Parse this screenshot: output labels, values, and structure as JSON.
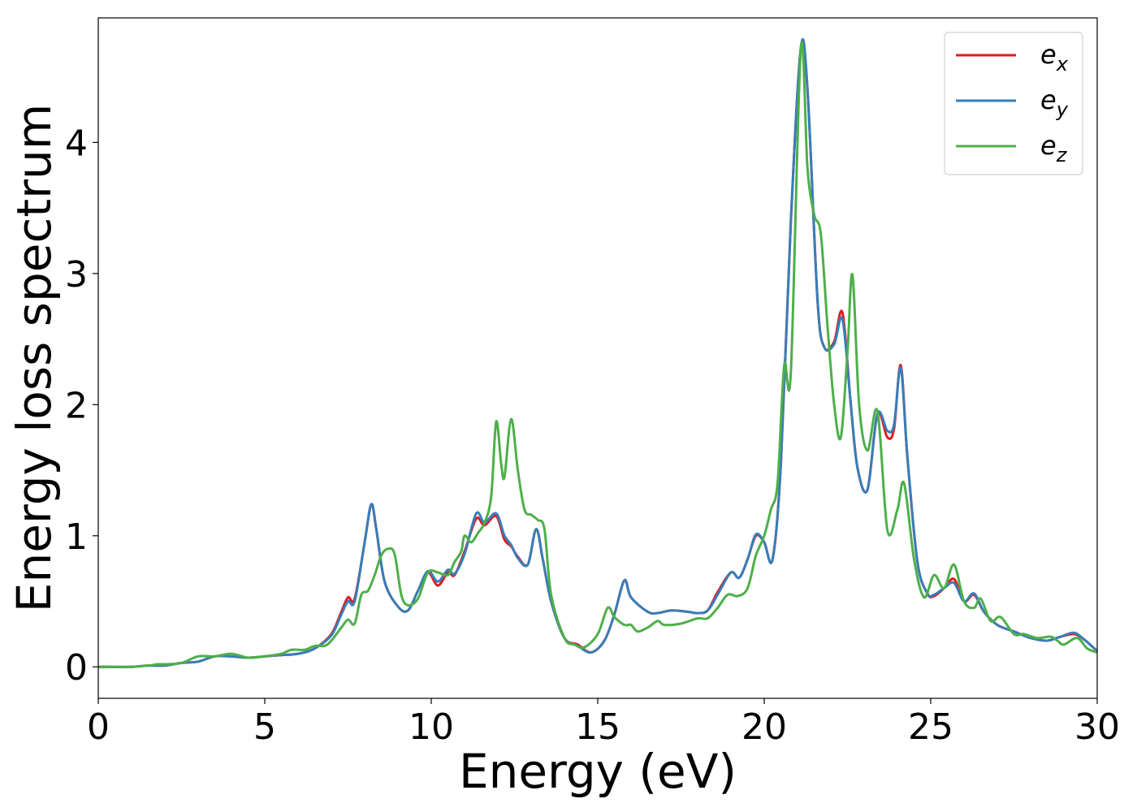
{
  "chart_data": {
    "type": "line",
    "xlabel": "Energy (eV)",
    "ylabel": "Energy loss spectrum",
    "xlim": [
      0,
      30
    ],
    "ylim": [
      -0.24,
      4.95
    ],
    "xticks": [
      0,
      5,
      10,
      15,
      20,
      25,
      30
    ],
    "xtick_labels": [
      "0",
      "5",
      "10",
      "15",
      "20",
      "25",
      "30"
    ],
    "yticks": [
      0,
      1,
      2,
      3,
      4
    ],
    "ytick_labels": [
      "0",
      "1",
      "2",
      "3",
      "4"
    ],
    "grid": false,
    "legend_position": "top-right",
    "series": [
      {
        "name": "e_x",
        "label_base": "e",
        "label_sub": "x",
        "color": "#e41a1c",
        "points": [
          [
            0,
            0.0
          ],
          [
            1.0,
            0.0
          ],
          [
            1.5,
            0.01
          ],
          [
            2.0,
            0.01
          ],
          [
            2.5,
            0.03
          ],
          [
            3.0,
            0.04
          ],
          [
            3.5,
            0.08
          ],
          [
            4.0,
            0.08
          ],
          [
            4.5,
            0.07
          ],
          [
            5.0,
            0.08
          ],
          [
            5.5,
            0.09
          ],
          [
            6.0,
            0.1
          ],
          [
            6.5,
            0.14
          ],
          [
            7.0,
            0.25
          ],
          [
            7.3,
            0.42
          ],
          [
            7.5,
            0.53
          ],
          [
            7.7,
            0.52
          ],
          [
            8.0,
            0.95
          ],
          [
            8.2,
            1.24
          ],
          [
            8.35,
            1.05
          ],
          [
            8.6,
            0.65
          ],
          [
            9.0,
            0.46
          ],
          [
            9.3,
            0.43
          ],
          [
            9.6,
            0.58
          ],
          [
            9.9,
            0.72
          ],
          [
            10.2,
            0.62
          ],
          [
            10.5,
            0.72
          ],
          [
            10.7,
            0.7
          ],
          [
            11.0,
            0.88
          ],
          [
            11.35,
            1.13
          ],
          [
            11.6,
            1.08
          ],
          [
            11.95,
            1.15
          ],
          [
            12.2,
            0.97
          ],
          [
            12.4,
            0.92
          ],
          [
            12.6,
            0.84
          ],
          [
            12.9,
            0.78
          ],
          [
            13.15,
            1.05
          ],
          [
            13.35,
            0.82
          ],
          [
            13.6,
            0.5
          ],
          [
            14.0,
            0.22
          ],
          [
            14.4,
            0.17
          ],
          [
            14.8,
            0.11
          ],
          [
            15.2,
            0.2
          ],
          [
            15.5,
            0.4
          ],
          [
            15.8,
            0.66
          ],
          [
            16.0,
            0.53
          ],
          [
            16.5,
            0.42
          ],
          [
            16.8,
            0.41
          ],
          [
            17.2,
            0.43
          ],
          [
            17.7,
            0.42
          ],
          [
            18.0,
            0.41
          ],
          [
            18.3,
            0.43
          ],
          [
            18.6,
            0.57
          ],
          [
            19.0,
            0.72
          ],
          [
            19.25,
            0.68
          ],
          [
            19.5,
            0.82
          ],
          [
            19.75,
            1.0
          ],
          [
            20.0,
            0.95
          ],
          [
            20.25,
            0.82
          ],
          [
            20.5,
            1.55
          ],
          [
            20.8,
            3.4
          ],
          [
            21.1,
            4.72
          ],
          [
            21.3,
            4.4
          ],
          [
            21.6,
            2.8
          ],
          [
            21.8,
            2.44
          ],
          [
            22.1,
            2.48
          ],
          [
            22.35,
            2.7
          ],
          [
            22.6,
            2.0
          ],
          [
            22.8,
            1.52
          ],
          [
            23.1,
            1.35
          ],
          [
            23.4,
            1.93
          ],
          [
            23.7,
            1.75
          ],
          [
            23.9,
            1.82
          ],
          [
            24.1,
            2.3
          ],
          [
            24.3,
            1.6
          ],
          [
            24.6,
            0.8
          ],
          [
            24.9,
            0.56
          ],
          [
            25.1,
            0.54
          ],
          [
            25.4,
            0.6
          ],
          [
            25.7,
            0.67
          ],
          [
            26.0,
            0.5
          ],
          [
            26.3,
            0.55
          ],
          [
            26.6,
            0.42
          ],
          [
            27.0,
            0.32
          ],
          [
            27.5,
            0.27
          ],
          [
            28.0,
            0.22
          ],
          [
            28.5,
            0.2
          ],
          [
            28.9,
            0.23
          ],
          [
            29.3,
            0.25
          ],
          [
            29.6,
            0.21
          ],
          [
            30.0,
            0.12
          ]
        ]
      },
      {
        "name": "e_y",
        "label_base": "e",
        "label_sub": "y",
        "color": "#377eb8",
        "points": [
          [
            0,
            0.0
          ],
          [
            1.0,
            0.0
          ],
          [
            1.5,
            0.01
          ],
          [
            2.0,
            0.01
          ],
          [
            2.5,
            0.03
          ],
          [
            3.0,
            0.04
          ],
          [
            3.5,
            0.08
          ],
          [
            4.0,
            0.08
          ],
          [
            4.5,
            0.07
          ],
          [
            5.0,
            0.08
          ],
          [
            5.5,
            0.09
          ],
          [
            6.0,
            0.1
          ],
          [
            6.5,
            0.14
          ],
          [
            7.0,
            0.24
          ],
          [
            7.3,
            0.4
          ],
          [
            7.5,
            0.5
          ],
          [
            7.7,
            0.5
          ],
          [
            8.0,
            0.95
          ],
          [
            8.2,
            1.24
          ],
          [
            8.35,
            1.05
          ],
          [
            8.6,
            0.65
          ],
          [
            9.0,
            0.46
          ],
          [
            9.3,
            0.43
          ],
          [
            9.6,
            0.58
          ],
          [
            9.9,
            0.73
          ],
          [
            10.2,
            0.65
          ],
          [
            10.5,
            0.74
          ],
          [
            10.7,
            0.71
          ],
          [
            11.0,
            0.86
          ],
          [
            11.35,
            1.17
          ],
          [
            11.6,
            1.1
          ],
          [
            11.95,
            1.17
          ],
          [
            12.2,
            1.0
          ],
          [
            12.4,
            0.93
          ],
          [
            12.6,
            0.83
          ],
          [
            12.9,
            0.78
          ],
          [
            13.15,
            1.05
          ],
          [
            13.35,
            0.82
          ],
          [
            13.6,
            0.5
          ],
          [
            14.0,
            0.22
          ],
          [
            14.4,
            0.16
          ],
          [
            14.8,
            0.11
          ],
          [
            15.2,
            0.2
          ],
          [
            15.5,
            0.4
          ],
          [
            15.8,
            0.66
          ],
          [
            16.0,
            0.53
          ],
          [
            16.5,
            0.42
          ],
          [
            16.8,
            0.41
          ],
          [
            17.2,
            0.43
          ],
          [
            17.7,
            0.42
          ],
          [
            18.0,
            0.41
          ],
          [
            18.3,
            0.43
          ],
          [
            18.6,
            0.55
          ],
          [
            19.0,
            0.72
          ],
          [
            19.25,
            0.68
          ],
          [
            19.5,
            0.82
          ],
          [
            19.75,
            1.01
          ],
          [
            20.0,
            0.95
          ],
          [
            20.25,
            0.82
          ],
          [
            20.5,
            1.55
          ],
          [
            20.8,
            3.4
          ],
          [
            21.1,
            4.72
          ],
          [
            21.3,
            4.4
          ],
          [
            21.6,
            2.8
          ],
          [
            21.8,
            2.44
          ],
          [
            22.1,
            2.46
          ],
          [
            22.35,
            2.65
          ],
          [
            22.6,
            2.0
          ],
          [
            22.8,
            1.52
          ],
          [
            23.1,
            1.35
          ],
          [
            23.4,
            1.93
          ],
          [
            23.7,
            1.8
          ],
          [
            23.9,
            1.85
          ],
          [
            24.1,
            2.28
          ],
          [
            24.3,
            1.6
          ],
          [
            24.6,
            0.8
          ],
          [
            24.9,
            0.56
          ],
          [
            25.1,
            0.55
          ],
          [
            25.4,
            0.6
          ],
          [
            25.7,
            0.64
          ],
          [
            26.0,
            0.5
          ],
          [
            26.3,
            0.56
          ],
          [
            26.6,
            0.42
          ],
          [
            27.0,
            0.32
          ],
          [
            27.5,
            0.27
          ],
          [
            28.0,
            0.22
          ],
          [
            28.5,
            0.2
          ],
          [
            28.9,
            0.23
          ],
          [
            29.3,
            0.26
          ],
          [
            29.6,
            0.21
          ],
          [
            30.0,
            0.12
          ]
        ]
      },
      {
        "name": "e_z",
        "label_base": "e",
        "label_sub": "z",
        "color": "#4daf4a",
        "points": [
          [
            0,
            0.0
          ],
          [
            1.0,
            0.0
          ],
          [
            1.5,
            0.01
          ],
          [
            1.8,
            0.02
          ],
          [
            2.0,
            0.02
          ],
          [
            2.5,
            0.03
          ],
          [
            3.0,
            0.08
          ],
          [
            3.5,
            0.08
          ],
          [
            4.0,
            0.1
          ],
          [
            4.5,
            0.07
          ],
          [
            5.0,
            0.08
          ],
          [
            5.5,
            0.1
          ],
          [
            5.8,
            0.13
          ],
          [
            6.2,
            0.13
          ],
          [
            6.5,
            0.16
          ],
          [
            6.8,
            0.16
          ],
          [
            7.0,
            0.2
          ],
          [
            7.3,
            0.3
          ],
          [
            7.5,
            0.36
          ],
          [
            7.7,
            0.33
          ],
          [
            7.9,
            0.55
          ],
          [
            8.1,
            0.58
          ],
          [
            8.3,
            0.7
          ],
          [
            8.5,
            0.85
          ],
          [
            8.7,
            0.9
          ],
          [
            8.9,
            0.86
          ],
          [
            9.1,
            0.55
          ],
          [
            9.3,
            0.47
          ],
          [
            9.6,
            0.52
          ],
          [
            9.9,
            0.72
          ],
          [
            10.2,
            0.72
          ],
          [
            10.5,
            0.7
          ],
          [
            10.7,
            0.8
          ],
          [
            10.9,
            0.88
          ],
          [
            11.0,
            1.0
          ],
          [
            11.2,
            0.95
          ],
          [
            11.4,
            1.02
          ],
          [
            11.6,
            1.1
          ],
          [
            11.8,
            1.3
          ],
          [
            11.95,
            1.87
          ],
          [
            12.1,
            1.55
          ],
          [
            12.2,
            1.45
          ],
          [
            12.4,
            1.89
          ],
          [
            12.6,
            1.5
          ],
          [
            12.8,
            1.2
          ],
          [
            13.0,
            1.16
          ],
          [
            13.2,
            1.12
          ],
          [
            13.4,
            1.05
          ],
          [
            13.6,
            0.55
          ],
          [
            14.0,
            0.22
          ],
          [
            14.3,
            0.17
          ],
          [
            14.6,
            0.15
          ],
          [
            15.0,
            0.25
          ],
          [
            15.3,
            0.45
          ],
          [
            15.5,
            0.38
          ],
          [
            15.8,
            0.32
          ],
          [
            16.0,
            0.32
          ],
          [
            16.2,
            0.27
          ],
          [
            16.5,
            0.3
          ],
          [
            16.8,
            0.35
          ],
          [
            17.0,
            0.32
          ],
          [
            17.5,
            0.33
          ],
          [
            18.0,
            0.37
          ],
          [
            18.3,
            0.37
          ],
          [
            18.6,
            0.45
          ],
          [
            18.9,
            0.55
          ],
          [
            19.2,
            0.54
          ],
          [
            19.5,
            0.6
          ],
          [
            19.75,
            0.85
          ],
          [
            20.0,
            1.0
          ],
          [
            20.2,
            1.2
          ],
          [
            20.4,
            1.4
          ],
          [
            20.6,
            2.3
          ],
          [
            20.8,
            2.25
          ],
          [
            21.1,
            4.72
          ],
          [
            21.3,
            3.8
          ],
          [
            21.5,
            3.45
          ],
          [
            21.7,
            3.3
          ],
          [
            21.9,
            2.6
          ],
          [
            22.1,
            2.0
          ],
          [
            22.3,
            1.75
          ],
          [
            22.5,
            2.4
          ],
          [
            22.65,
            2.99
          ],
          [
            22.85,
            2.0
          ],
          [
            23.1,
            1.65
          ],
          [
            23.4,
            1.95
          ],
          [
            23.7,
            1.04
          ],
          [
            24.0,
            1.2
          ],
          [
            24.2,
            1.4
          ],
          [
            24.5,
            0.82
          ],
          [
            24.8,
            0.53
          ],
          [
            25.1,
            0.7
          ],
          [
            25.4,
            0.6
          ],
          [
            25.7,
            0.78
          ],
          [
            26.0,
            0.5
          ],
          [
            26.3,
            0.45
          ],
          [
            26.5,
            0.52
          ],
          [
            26.8,
            0.35
          ],
          [
            27.1,
            0.38
          ],
          [
            27.5,
            0.25
          ],
          [
            27.8,
            0.25
          ],
          [
            28.2,
            0.22
          ],
          [
            28.6,
            0.23
          ],
          [
            28.8,
            0.2
          ],
          [
            29.0,
            0.17
          ],
          [
            29.4,
            0.22
          ],
          [
            29.7,
            0.14
          ],
          [
            30.0,
            0.11
          ]
        ]
      }
    ]
  }
}
